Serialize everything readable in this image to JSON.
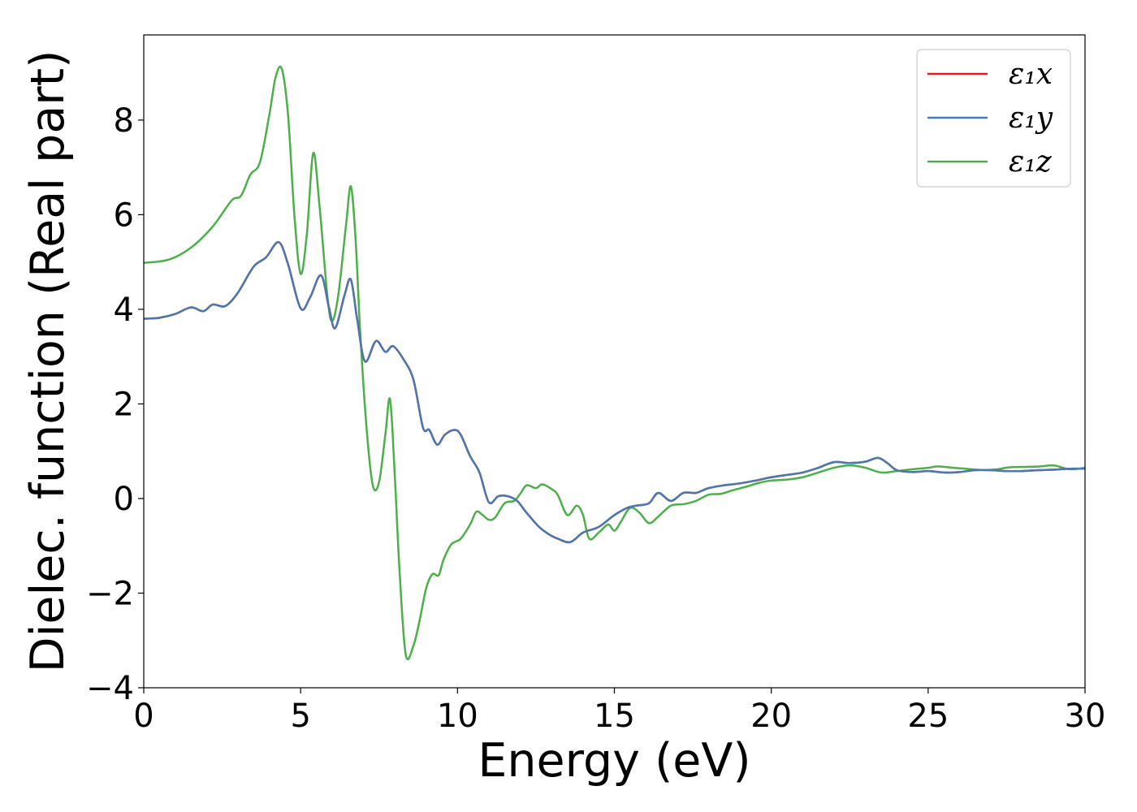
{
  "chart_data": {
    "type": "line",
    "xlabel": "Energy (eV)",
    "ylabel": "Dielec. function (Real part)",
    "xlim": [
      0,
      30
    ],
    "ylim": [
      -4,
      9.8
    ],
    "xticks": [
      0,
      5,
      10,
      15,
      20,
      25,
      30
    ],
    "xtick_labels": [
      "0",
      "5",
      "10",
      "15",
      "20",
      "25",
      "30"
    ],
    "yticks": [
      -4,
      -2,
      0,
      2,
      4,
      6,
      8
    ],
    "ytick_labels": [
      "−4",
      "−2",
      "0",
      "2",
      "4",
      "6",
      "8"
    ],
    "grid": false,
    "legend_position": "top-right",
    "series": [
      {
        "name": "ε₁x",
        "color": "#e41a1c",
        "points": [
          [
            0,
            3.8
          ],
          [
            0.5,
            3.82
          ],
          [
            1.0,
            3.9
          ],
          [
            1.5,
            4.04
          ],
          [
            1.9,
            3.96
          ],
          [
            2.2,
            4.1
          ],
          [
            2.6,
            4.07
          ],
          [
            3.0,
            4.35
          ],
          [
            3.5,
            4.9
          ],
          [
            3.9,
            5.1
          ],
          [
            4.3,
            5.42
          ],
          [
            4.6,
            4.95
          ],
          [
            5.0,
            4.02
          ],
          [
            5.3,
            4.25
          ],
          [
            5.65,
            4.72
          ],
          [
            5.9,
            4.05
          ],
          [
            6.1,
            3.6
          ],
          [
            6.4,
            4.3
          ],
          [
            6.6,
            4.63
          ],
          [
            6.8,
            3.8
          ],
          [
            7.05,
            2.9
          ],
          [
            7.4,
            3.33
          ],
          [
            7.7,
            3.1
          ],
          [
            7.95,
            3.22
          ],
          [
            8.3,
            2.92
          ],
          [
            8.6,
            2.5
          ],
          [
            8.9,
            1.5
          ],
          [
            9.1,
            1.45
          ],
          [
            9.35,
            1.14
          ],
          [
            9.6,
            1.35
          ],
          [
            9.9,
            1.45
          ],
          [
            10.1,
            1.35
          ],
          [
            10.4,
            0.9
          ],
          [
            10.7,
            0.55
          ],
          [
            11.0,
            -0.08
          ],
          [
            11.3,
            0.05
          ],
          [
            11.6,
            0.05
          ],
          [
            11.9,
            -0.05
          ],
          [
            12.2,
            -0.3
          ],
          [
            12.6,
            -0.6
          ],
          [
            12.9,
            -0.75
          ],
          [
            13.2,
            -0.85
          ],
          [
            13.6,
            -0.92
          ],
          [
            14.0,
            -0.72
          ],
          [
            14.5,
            -0.6
          ],
          [
            15.0,
            -0.35
          ],
          [
            15.4,
            -0.2
          ],
          [
            15.7,
            -0.15
          ],
          [
            16.1,
            -0.1
          ],
          [
            16.4,
            0.12
          ],
          [
            16.8,
            -0.05
          ],
          [
            17.2,
            0.12
          ],
          [
            17.6,
            0.12
          ],
          [
            18.0,
            0.22
          ],
          [
            18.5,
            0.28
          ],
          [
            19.0,
            0.32
          ],
          [
            19.5,
            0.38
          ],
          [
            20.0,
            0.45
          ],
          [
            20.5,
            0.5
          ],
          [
            21.0,
            0.55
          ],
          [
            21.5,
            0.65
          ],
          [
            22.0,
            0.77
          ],
          [
            22.5,
            0.75
          ],
          [
            23.0,
            0.78
          ],
          [
            23.4,
            0.86
          ],
          [
            23.7,
            0.75
          ],
          [
            24.0,
            0.6
          ],
          [
            24.5,
            0.56
          ],
          [
            25.0,
            0.58
          ],
          [
            25.5,
            0.55
          ],
          [
            26.0,
            0.56
          ],
          [
            26.5,
            0.6
          ],
          [
            27.0,
            0.6
          ],
          [
            27.5,
            0.58
          ],
          [
            28.0,
            0.58
          ],
          [
            28.5,
            0.6
          ],
          [
            29.0,
            0.61
          ],
          [
            29.5,
            0.63
          ],
          [
            30.0,
            0.63
          ]
        ]
      },
      {
        "name": "ε₁y",
        "color": "#4a78b0",
        "points": [
          [
            0,
            3.8
          ],
          [
            0.5,
            3.82
          ],
          [
            1.0,
            3.9
          ],
          [
            1.5,
            4.04
          ],
          [
            1.9,
            3.96
          ],
          [
            2.2,
            4.1
          ],
          [
            2.6,
            4.07
          ],
          [
            3.0,
            4.35
          ],
          [
            3.5,
            4.9
          ],
          [
            3.9,
            5.1
          ],
          [
            4.3,
            5.42
          ],
          [
            4.6,
            4.95
          ],
          [
            5.0,
            4.02
          ],
          [
            5.3,
            4.25
          ],
          [
            5.65,
            4.72
          ],
          [
            5.9,
            4.05
          ],
          [
            6.1,
            3.6
          ],
          [
            6.4,
            4.3
          ],
          [
            6.6,
            4.63
          ],
          [
            6.8,
            3.8
          ],
          [
            7.05,
            2.9
          ],
          [
            7.4,
            3.33
          ],
          [
            7.7,
            3.1
          ],
          [
            7.95,
            3.22
          ],
          [
            8.3,
            2.92
          ],
          [
            8.6,
            2.5
          ],
          [
            8.9,
            1.5
          ],
          [
            9.1,
            1.45
          ],
          [
            9.35,
            1.14
          ],
          [
            9.6,
            1.35
          ],
          [
            9.9,
            1.45
          ],
          [
            10.1,
            1.35
          ],
          [
            10.4,
            0.9
          ],
          [
            10.7,
            0.55
          ],
          [
            11.0,
            -0.08
          ],
          [
            11.3,
            0.05
          ],
          [
            11.6,
            0.05
          ],
          [
            11.9,
            -0.05
          ],
          [
            12.2,
            -0.3
          ],
          [
            12.6,
            -0.6
          ],
          [
            12.9,
            -0.75
          ],
          [
            13.2,
            -0.85
          ],
          [
            13.6,
            -0.92
          ],
          [
            14.0,
            -0.72
          ],
          [
            14.5,
            -0.6
          ],
          [
            15.0,
            -0.35
          ],
          [
            15.4,
            -0.2
          ],
          [
            15.7,
            -0.15
          ],
          [
            16.1,
            -0.1
          ],
          [
            16.4,
            0.12
          ],
          [
            16.8,
            -0.05
          ],
          [
            17.2,
            0.12
          ],
          [
            17.6,
            0.12
          ],
          [
            18.0,
            0.22
          ],
          [
            18.5,
            0.28
          ],
          [
            19.0,
            0.32
          ],
          [
            19.5,
            0.38
          ],
          [
            20.0,
            0.45
          ],
          [
            20.5,
            0.5
          ],
          [
            21.0,
            0.55
          ],
          [
            21.5,
            0.65
          ],
          [
            22.0,
            0.77
          ],
          [
            22.5,
            0.75
          ],
          [
            23.0,
            0.78
          ],
          [
            23.4,
            0.86
          ],
          [
            23.7,
            0.75
          ],
          [
            24.0,
            0.6
          ],
          [
            24.5,
            0.56
          ],
          [
            25.0,
            0.58
          ],
          [
            25.5,
            0.55
          ],
          [
            26.0,
            0.56
          ],
          [
            26.5,
            0.6
          ],
          [
            27.0,
            0.6
          ],
          [
            27.5,
            0.58
          ],
          [
            28.0,
            0.58
          ],
          [
            28.5,
            0.6
          ],
          [
            29.0,
            0.61
          ],
          [
            29.5,
            0.63
          ],
          [
            30.0,
            0.63
          ]
        ]
      },
      {
        "name": "ε₁z",
        "color": "#4daf4a",
        "points": [
          [
            0,
            4.98
          ],
          [
            0.8,
            5.05
          ],
          [
            1.5,
            5.3
          ],
          [
            2.2,
            5.75
          ],
          [
            2.8,
            6.3
          ],
          [
            3.1,
            6.4
          ],
          [
            3.4,
            6.85
          ],
          [
            3.7,
            7.1
          ],
          [
            4.0,
            8.1
          ],
          [
            4.2,
            8.9
          ],
          [
            4.4,
            9.08
          ],
          [
            4.6,
            8.1
          ],
          [
            4.8,
            6.0
          ],
          [
            5.0,
            4.75
          ],
          [
            5.2,
            5.6
          ],
          [
            5.4,
            7.3
          ],
          [
            5.6,
            6.2
          ],
          [
            5.85,
            4.3
          ],
          [
            6.0,
            3.75
          ],
          [
            6.2,
            4.3
          ],
          [
            6.45,
            5.8
          ],
          [
            6.6,
            6.6
          ],
          [
            6.75,
            5.5
          ],
          [
            6.9,
            3.5
          ],
          [
            7.1,
            1.5
          ],
          [
            7.3,
            0.28
          ],
          [
            7.5,
            0.35
          ],
          [
            7.7,
            1.35
          ],
          [
            7.85,
            2.1
          ],
          [
            8.0,
            0.5
          ],
          [
            8.15,
            -1.5
          ],
          [
            8.35,
            -3.3
          ],
          [
            8.6,
            -3.1
          ],
          [
            8.8,
            -2.55
          ],
          [
            9.0,
            -1.9
          ],
          [
            9.2,
            -1.6
          ],
          [
            9.4,
            -1.62
          ],
          [
            9.55,
            -1.3
          ],
          [
            9.8,
            -0.97
          ],
          [
            10.1,
            -0.85
          ],
          [
            10.4,
            -0.55
          ],
          [
            10.6,
            -0.28
          ],
          [
            10.8,
            -0.35
          ],
          [
            11.0,
            -0.45
          ],
          [
            11.2,
            -0.4
          ],
          [
            11.5,
            -0.1
          ],
          [
            11.8,
            -0.05
          ],
          [
            12.0,
            0.1
          ],
          [
            12.2,
            0.28
          ],
          [
            12.5,
            0.22
          ],
          [
            12.7,
            0.3
          ],
          [
            13.0,
            0.2
          ],
          [
            13.2,
            0.07
          ],
          [
            13.5,
            -0.35
          ],
          [
            13.8,
            -0.15
          ],
          [
            14.0,
            -0.35
          ],
          [
            14.2,
            -0.85
          ],
          [
            14.5,
            -0.72
          ],
          [
            14.8,
            -0.55
          ],
          [
            15.0,
            -0.68
          ],
          [
            15.2,
            -0.5
          ],
          [
            15.5,
            -0.2
          ],
          [
            15.8,
            -0.3
          ],
          [
            16.1,
            -0.52
          ],
          [
            16.4,
            -0.38
          ],
          [
            16.8,
            -0.15
          ],
          [
            17.2,
            -0.12
          ],
          [
            17.6,
            -0.05
          ],
          [
            18.0,
            0.08
          ],
          [
            18.4,
            0.1
          ],
          [
            18.8,
            0.18
          ],
          [
            19.2,
            0.25
          ],
          [
            19.6,
            0.33
          ],
          [
            20.0,
            0.38
          ],
          [
            20.5,
            0.4
          ],
          [
            21.0,
            0.45
          ],
          [
            21.5,
            0.55
          ],
          [
            22.0,
            0.65
          ],
          [
            22.5,
            0.7
          ],
          [
            23.0,
            0.65
          ],
          [
            23.5,
            0.55
          ],
          [
            24.0,
            0.58
          ],
          [
            24.5,
            0.62
          ],
          [
            25.0,
            0.65
          ],
          [
            25.3,
            0.68
          ],
          [
            25.8,
            0.65
          ],
          [
            26.2,
            0.63
          ],
          [
            26.8,
            0.6
          ],
          [
            27.2,
            0.62
          ],
          [
            27.6,
            0.66
          ],
          [
            28.2,
            0.67
          ],
          [
            28.6,
            0.68
          ],
          [
            29.0,
            0.7
          ],
          [
            29.5,
            0.62
          ],
          [
            30.0,
            0.65
          ]
        ]
      }
    ]
  }
}
